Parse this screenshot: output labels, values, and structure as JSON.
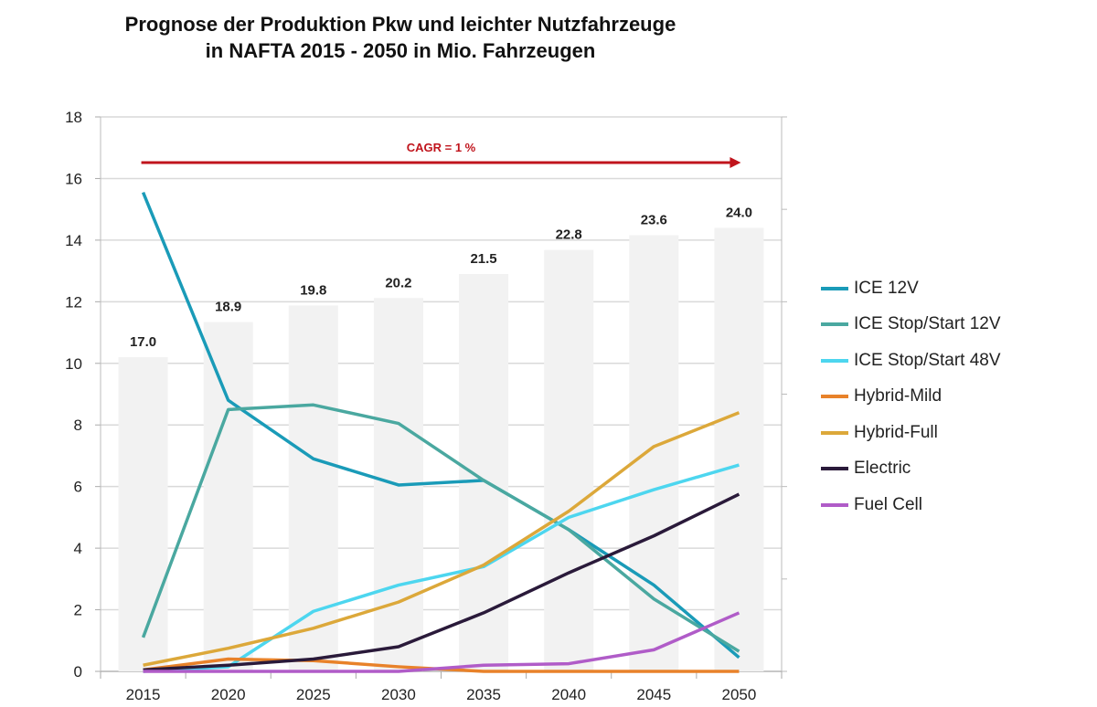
{
  "chart_data": {
    "type": "line",
    "title": "Prognose der Produktion Pkw und leichter Nutzfahrzeuge\nin NAFTA 2015 - 2050 in Mio. Fahrzeugen",
    "categories": [
      "2015",
      "2020",
      "2025",
      "2030",
      "2035",
      "2040",
      "2045",
      "2050"
    ],
    "ylim": [
      0,
      18
    ],
    "yticks": [
      0,
      2,
      4,
      6,
      8,
      10,
      12,
      14,
      16,
      18
    ],
    "y2lim": [
      0,
      30
    ],
    "grid": true,
    "legend_position": "right",
    "annotation": {
      "text": "CAGR = 1 %",
      "color": "#c0141c"
    },
    "bars": {
      "name": "Total",
      "color": "#f2f2f2",
      "axis": "secondary",
      "values": [
        17.0,
        18.9,
        19.8,
        20.2,
        21.5,
        22.8,
        23.6,
        24.0
      ],
      "labels": [
        "17.0",
        "18.9",
        "19.8",
        "20.2",
        "21.5",
        "22.8",
        "23.6",
        "24.0"
      ]
    },
    "series": [
      {
        "name": "ICE 12V",
        "color": "#1a9bb8",
        "values": [
          15.55,
          8.8,
          6.9,
          6.05,
          6.2,
          4.6,
          2.8,
          0.45
        ]
      },
      {
        "name": "ICE Stop/Start 12V",
        "color": "#4aa8a0",
        "values": [
          1.1,
          8.5,
          8.65,
          8.05,
          6.2,
          4.6,
          2.35,
          0.65
        ]
      },
      {
        "name": "ICE Stop/Start 48V",
        "color": "#4dd6ef",
        "values": [
          0.0,
          0.15,
          1.95,
          2.8,
          3.4,
          5.0,
          5.9,
          6.7
        ]
      },
      {
        "name": "Hybrid-Mild",
        "color": "#e8822a",
        "values": [
          0.05,
          0.4,
          0.35,
          0.15,
          0.0,
          0.0,
          0.0,
          0.0
        ]
      },
      {
        "name": "Hybrid-Full",
        "color": "#dca83a",
        "values": [
          0.2,
          0.75,
          1.4,
          2.25,
          3.45,
          5.2,
          7.3,
          8.4
        ]
      },
      {
        "name": "Electric",
        "color": "#2a1a3a",
        "values": [
          0.05,
          0.2,
          0.4,
          0.8,
          1.9,
          3.2,
          4.4,
          5.75
        ]
      },
      {
        "name": "Fuel Cell",
        "color": "#b05cc8",
        "values": [
          0.0,
          0.0,
          0.0,
          0.0,
          0.2,
          0.25,
          0.7,
          1.9
        ]
      }
    ]
  }
}
